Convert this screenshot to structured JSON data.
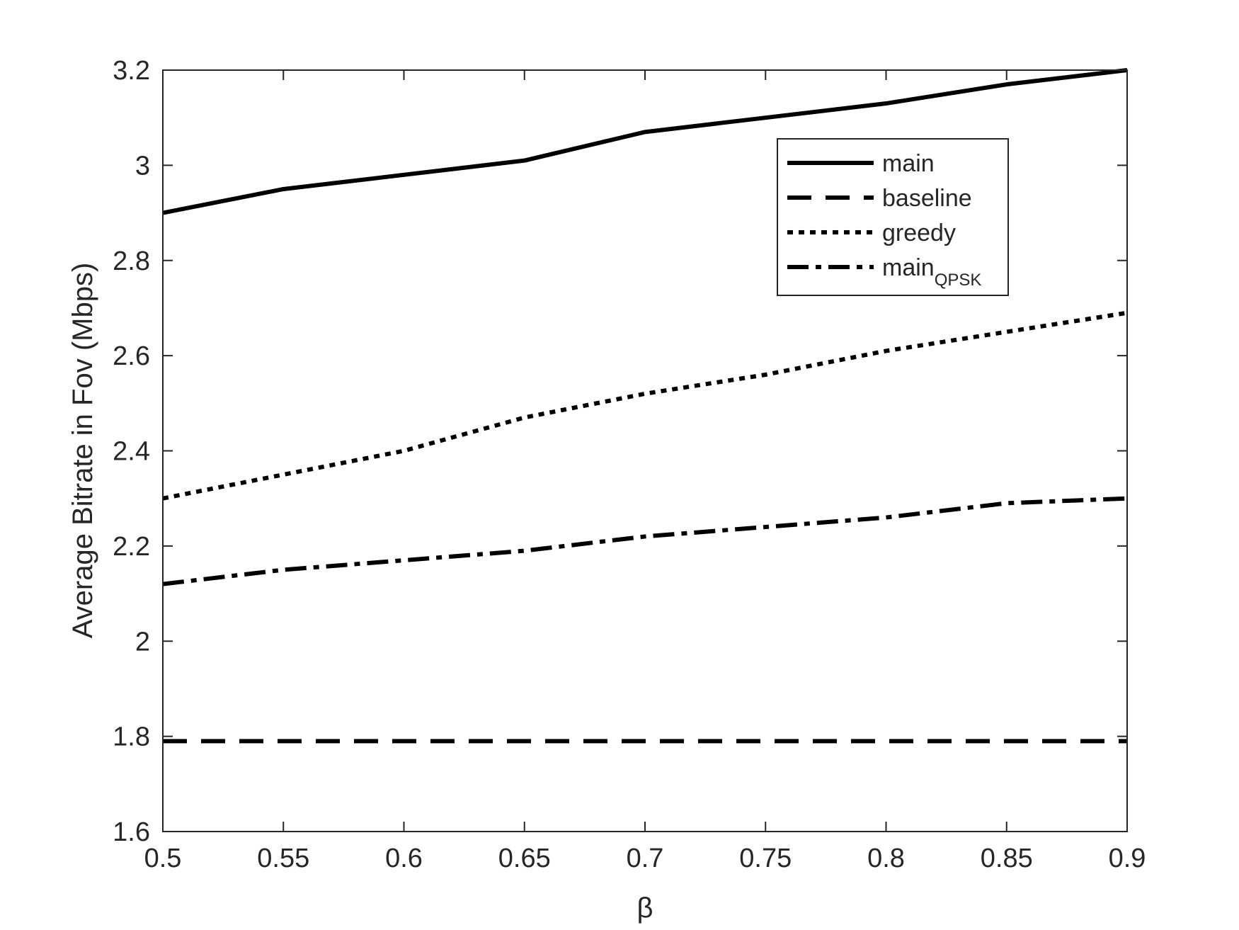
{
  "chart_data": {
    "type": "line",
    "xlabel": "β",
    "ylabel": "Average Bitrate in Fov (Mbps)",
    "xlim": [
      0.5,
      0.9
    ],
    "ylim": [
      1.6,
      3.2
    ],
    "xticks": [
      0.5,
      0.55,
      0.6,
      0.65,
      0.7,
      0.75,
      0.8,
      0.85,
      0.9
    ],
    "xtick_labels": [
      "0.5",
      "0.55",
      "0.6",
      "0.65",
      "0.7",
      "0.75",
      "0.8",
      "0.85",
      "0.9"
    ],
    "yticks": [
      1.6,
      1.8,
      2.0,
      2.2,
      2.4,
      2.6,
      2.8,
      3.0,
      3.2
    ],
    "ytick_labels": [
      "1.6",
      "1.8",
      "2",
      "2.2",
      "2.4",
      "2.6",
      "2.8",
      "3",
      "3.2"
    ],
    "grid": false,
    "legend_position": "top-right",
    "x": [
      0.5,
      0.55,
      0.6,
      0.65,
      0.7,
      0.75,
      0.8,
      0.85,
      0.9
    ],
    "series": [
      {
        "name": "main",
        "style": "solid",
        "values": [
          2.9,
          2.95,
          2.98,
          3.01,
          3.07,
          3.1,
          3.13,
          3.17,
          3.2
        ]
      },
      {
        "name": "baseline",
        "style": "dashed",
        "values": [
          1.79,
          1.79,
          1.79,
          1.79,
          1.79,
          1.79,
          1.79,
          1.79,
          1.79
        ]
      },
      {
        "name": "greedy",
        "style": "dotted",
        "values": [
          2.3,
          2.35,
          2.4,
          2.47,
          2.52,
          2.56,
          2.61,
          2.65,
          2.69
        ]
      },
      {
        "name": "main",
        "name_sub": "QPSK",
        "style": "dashdot",
        "values": [
          2.12,
          2.15,
          2.17,
          2.19,
          2.22,
          2.24,
          2.26,
          2.29,
          2.3
        ]
      }
    ],
    "colors": {
      "line": "#000000",
      "axis": "#262626"
    }
  }
}
